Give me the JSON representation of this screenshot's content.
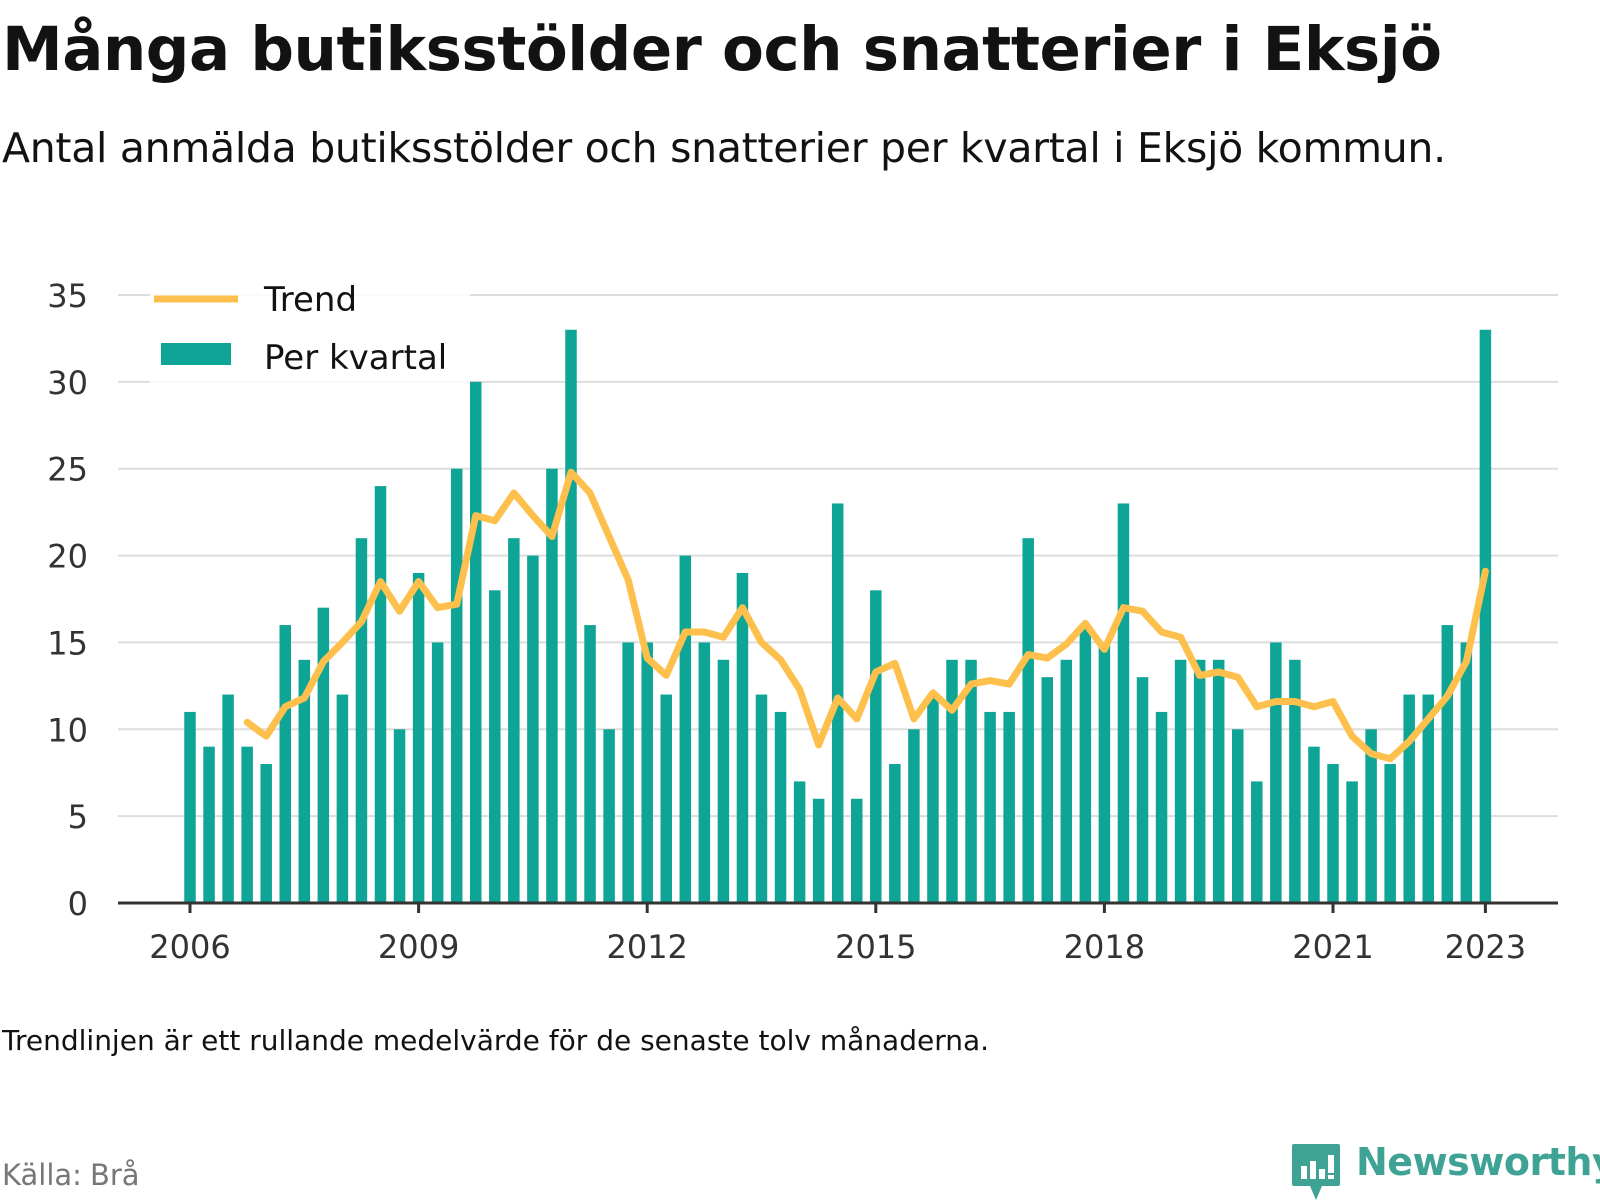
{
  "header": {
    "title": "Många butiksstölder och snatterier i Eksjö",
    "subtitle": "Antal anmälda butiksstölder och snatterier per kvartal i Eksjö kommun."
  },
  "footer": {
    "note": "Trendlinjen är ett rullande medelvärde för de senaste tolv månaderna.",
    "source_label": "Källa:",
    "source_value": "Brå",
    "brand": "Newsworthy"
  },
  "colors": {
    "bars": "#0ea596",
    "trend": "#fdc04d",
    "grid": "#dddddd",
    "axis": "#333333",
    "text": "#121212",
    "brand": "#3ea394"
  },
  "chart_data": {
    "type": "bar",
    "x_start": "2006 Q1",
    "x_unit": "quarter",
    "x_ticks": [
      "2006",
      "2009",
      "2012",
      "2015",
      "2018",
      "2021",
      "2023"
    ],
    "y_ticks": [
      "0",
      "5",
      "10",
      "15",
      "20",
      "25",
      "30",
      "35"
    ],
    "ylim": [
      0,
      35
    ],
    "grid": true,
    "legend_position": "top-left",
    "series": [
      {
        "name": "Per kvartal",
        "type": "bar",
        "values": [
          11,
          9,
          12,
          9,
          8,
          16,
          14,
          17,
          12,
          21,
          24,
          10,
          19,
          15,
          25,
          30,
          18,
          21,
          20,
          25,
          33,
          16,
          10,
          15,
          15,
          12,
          20,
          15,
          14,
          19,
          12,
          11,
          7,
          6,
          23,
          6,
          18,
          8,
          10,
          12,
          14,
          14,
          11,
          11,
          21,
          13,
          14,
          16,
          15,
          23,
          13,
          11,
          14,
          14,
          14,
          10,
          7,
          15,
          14,
          9,
          8,
          7,
          10,
          8,
          12,
          12,
          16,
          15,
          33
        ]
      },
      {
        "name": "Trend",
        "type": "line",
        "values": [
          null,
          null,
          null,
          10.4,
          9.6,
          11.3,
          11.8,
          13.9,
          15.0,
          16.2,
          18.5,
          16.8,
          18.5,
          17.0,
          17.2,
          22.3,
          22.0,
          23.6,
          22.3,
          21.1,
          24.8,
          23.6,
          21.1,
          18.6,
          14.1,
          13.1,
          15.6,
          15.6,
          15.3,
          17.0,
          15.0,
          14.0,
          12.3,
          9.1,
          11.8,
          10.6,
          13.3,
          13.8,
          10.6,
          12.1,
          11.1,
          12.6,
          12.8,
          12.6,
          14.3,
          14.1,
          14.9,
          16.1,
          14.6,
          17.0,
          16.8,
          15.6,
          15.3,
          13.1,
          13.3,
          13.0,
          11.3,
          11.6,
          11.6,
          11.3,
          11.6,
          9.6,
          8.6,
          8.3,
          9.3,
          10.6,
          11.9,
          13.9,
          19.1
        ]
      }
    ]
  }
}
